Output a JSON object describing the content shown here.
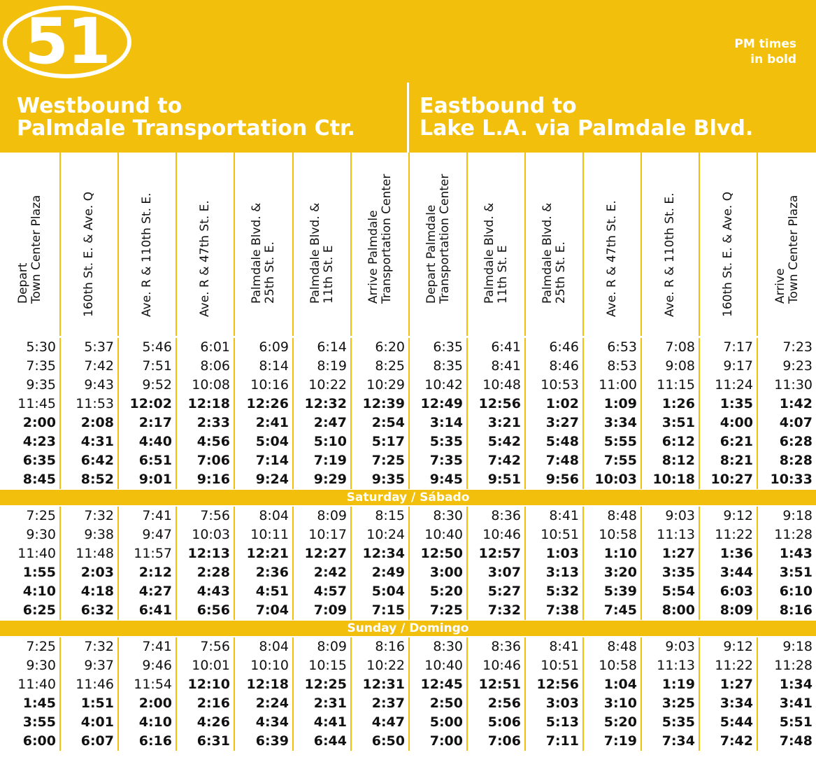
{
  "route": {
    "number": "51"
  },
  "pm_note": [
    "PM times",
    "in bold"
  ],
  "directions": [
    {
      "lines": [
        "Westbound to",
        "Palmdale Transportation Ctr."
      ]
    },
    {
      "lines": [
        "Eastbound to",
        "Lake L.A. via Palmdale Blvd."
      ]
    }
  ],
  "columns": [
    [
      "Depart",
      "Town Center Plaza"
    ],
    [
      "160th St. E. & Ave. Q"
    ],
    [
      "Ave. R & 110th St. E."
    ],
    [
      "Ave. R & 47th St. E."
    ],
    [
      "Palmdale Blvd. &",
      "25th St. E."
    ],
    [
      "Palmdale Blvd. &",
      "11th St. E"
    ],
    [
      "Arrive Palmdale",
      "Transportation Center"
    ],
    [
      "Depart Palmdale",
      "Transportation Center"
    ],
    [
      "Palmdale Blvd. &",
      "11th St. E"
    ],
    [
      "Palmdale Blvd. &",
      "25th St. E."
    ],
    [
      "Ave. R & 47th St. E."
    ],
    [
      "Ave. R & 110th St. E."
    ],
    [
      "160th St. E. & Ave. Q"
    ],
    [
      "Arrive",
      "Town Center Plaza"
    ]
  ],
  "sections": [
    {
      "label": "",
      "rows": [
        [
          [
            "5:30",
            0
          ],
          [
            "5:37",
            0
          ],
          [
            "5:46",
            0
          ],
          [
            "6:01",
            0
          ],
          [
            "6:09",
            0
          ],
          [
            "6:14",
            0
          ],
          [
            "6:20",
            0
          ],
          [
            "6:35",
            0
          ],
          [
            "6:41",
            0
          ],
          [
            "6:46",
            0
          ],
          [
            "6:53",
            0
          ],
          [
            "7:08",
            0
          ],
          [
            "7:17",
            0
          ],
          [
            "7:23",
            0
          ]
        ],
        [
          [
            "7:35",
            0
          ],
          [
            "7:42",
            0
          ],
          [
            "7:51",
            0
          ],
          [
            "8:06",
            0
          ],
          [
            "8:14",
            0
          ],
          [
            "8:19",
            0
          ],
          [
            "8:25",
            0
          ],
          [
            "8:35",
            0
          ],
          [
            "8:41",
            0
          ],
          [
            "8:46",
            0
          ],
          [
            "8:53",
            0
          ],
          [
            "9:08",
            0
          ],
          [
            "9:17",
            0
          ],
          [
            "9:23",
            0
          ]
        ],
        [
          [
            "9:35",
            0
          ],
          [
            "9:43",
            0
          ],
          [
            "9:52",
            0
          ],
          [
            "10:08",
            0
          ],
          [
            "10:16",
            0
          ],
          [
            "10:22",
            0
          ],
          [
            "10:29",
            0
          ],
          [
            "10:42",
            0
          ],
          [
            "10:48",
            0
          ],
          [
            "10:53",
            0
          ],
          [
            "11:00",
            0
          ],
          [
            "11:15",
            0
          ],
          [
            "11:24",
            0
          ],
          [
            "11:30",
            0
          ]
        ],
        [
          [
            "11:45",
            0
          ],
          [
            "11:53",
            0
          ],
          [
            "12:02",
            1
          ],
          [
            "12:18",
            1
          ],
          [
            "12:26",
            1
          ],
          [
            "12:32",
            1
          ],
          [
            "12:39",
            1
          ],
          [
            "12:49",
            1
          ],
          [
            "12:56",
            1
          ],
          [
            "1:02",
            1
          ],
          [
            "1:09",
            1
          ],
          [
            "1:26",
            1
          ],
          [
            "1:35",
            1
          ],
          [
            "1:42",
            1
          ]
        ],
        [
          [
            "2:00",
            1
          ],
          [
            "2:08",
            1
          ],
          [
            "2:17",
            1
          ],
          [
            "2:33",
            1
          ],
          [
            "2:41",
            1
          ],
          [
            "2:47",
            1
          ],
          [
            "2:54",
            1
          ],
          [
            "3:14",
            1
          ],
          [
            "3:21",
            1
          ],
          [
            "3:27",
            1
          ],
          [
            "3:34",
            1
          ],
          [
            "3:51",
            1
          ],
          [
            "4:00",
            1
          ],
          [
            "4:07",
            1
          ]
        ],
        [
          [
            "4:23",
            1
          ],
          [
            "4:31",
            1
          ],
          [
            "4:40",
            1
          ],
          [
            "4:56",
            1
          ],
          [
            "5:04",
            1
          ],
          [
            "5:10",
            1
          ],
          [
            "5:17",
            1
          ],
          [
            "5:35",
            1
          ],
          [
            "5:42",
            1
          ],
          [
            "5:48",
            1
          ],
          [
            "5:55",
            1
          ],
          [
            "6:12",
            1
          ],
          [
            "6:21",
            1
          ],
          [
            "6:28",
            1
          ]
        ],
        [
          [
            "6:35",
            1
          ],
          [
            "6:42",
            1
          ],
          [
            "6:51",
            1
          ],
          [
            "7:06",
            1
          ],
          [
            "7:14",
            1
          ],
          [
            "7:19",
            1
          ],
          [
            "7:25",
            1
          ],
          [
            "7:35",
            1
          ],
          [
            "7:42",
            1
          ],
          [
            "7:48",
            1
          ],
          [
            "7:55",
            1
          ],
          [
            "8:12",
            1
          ],
          [
            "8:21",
            1
          ],
          [
            "8:28",
            1
          ]
        ],
        [
          [
            "8:45",
            1
          ],
          [
            "8:52",
            1
          ],
          [
            "9:01",
            1
          ],
          [
            "9:16",
            1
          ],
          [
            "9:24",
            1
          ],
          [
            "9:29",
            1
          ],
          [
            "9:35",
            1
          ],
          [
            "9:45",
            1
          ],
          [
            "9:51",
            1
          ],
          [
            "9:56",
            1
          ],
          [
            "10:03",
            1
          ],
          [
            "10:18",
            1
          ],
          [
            "10:27",
            1
          ],
          [
            "10:33",
            1
          ]
        ]
      ]
    },
    {
      "label": "Saturday / Sábado",
      "rows": [
        [
          [
            "7:25",
            0
          ],
          [
            "7:32",
            0
          ],
          [
            "7:41",
            0
          ],
          [
            "7:56",
            0
          ],
          [
            "8:04",
            0
          ],
          [
            "8:09",
            0
          ],
          [
            "8:15",
            0
          ],
          [
            "8:30",
            0
          ],
          [
            "8:36",
            0
          ],
          [
            "8:41",
            0
          ],
          [
            "8:48",
            0
          ],
          [
            "9:03",
            0
          ],
          [
            "9:12",
            0
          ],
          [
            "9:18",
            0
          ]
        ],
        [
          [
            "9:30",
            0
          ],
          [
            "9:38",
            0
          ],
          [
            "9:47",
            0
          ],
          [
            "10:03",
            0
          ],
          [
            "10:11",
            0
          ],
          [
            "10:17",
            0
          ],
          [
            "10:24",
            0
          ],
          [
            "10:40",
            0
          ],
          [
            "10:46",
            0
          ],
          [
            "10:51",
            0
          ],
          [
            "10:58",
            0
          ],
          [
            "11:13",
            0
          ],
          [
            "11:22",
            0
          ],
          [
            "11:28",
            0
          ]
        ],
        [
          [
            "11:40",
            0
          ],
          [
            "11:48",
            0
          ],
          [
            "11:57",
            0
          ],
          [
            "12:13",
            1
          ],
          [
            "12:21",
            1
          ],
          [
            "12:27",
            1
          ],
          [
            "12:34",
            1
          ],
          [
            "12:50",
            1
          ],
          [
            "12:57",
            1
          ],
          [
            "1:03",
            1
          ],
          [
            "1:10",
            1
          ],
          [
            "1:27",
            1
          ],
          [
            "1:36",
            1
          ],
          [
            "1:43",
            1
          ]
        ],
        [
          [
            "1:55",
            1
          ],
          [
            "2:03",
            1
          ],
          [
            "2:12",
            1
          ],
          [
            "2:28",
            1
          ],
          [
            "2:36",
            1
          ],
          [
            "2:42",
            1
          ],
          [
            "2:49",
            1
          ],
          [
            "3:00",
            1
          ],
          [
            "3:07",
            1
          ],
          [
            "3:13",
            1
          ],
          [
            "3:20",
            1
          ],
          [
            "3:35",
            1
          ],
          [
            "3:44",
            1
          ],
          [
            "3:51",
            1
          ]
        ],
        [
          [
            "4:10",
            1
          ],
          [
            "4:18",
            1
          ],
          [
            "4:27",
            1
          ],
          [
            "4:43",
            1
          ],
          [
            "4:51",
            1
          ],
          [
            "4:57",
            1
          ],
          [
            "5:04",
            1
          ],
          [
            "5:20",
            1
          ],
          [
            "5:27",
            1
          ],
          [
            "5:32",
            1
          ],
          [
            "5:39",
            1
          ],
          [
            "5:54",
            1
          ],
          [
            "6:03",
            1
          ],
          [
            "6:10",
            1
          ]
        ],
        [
          [
            "6:25",
            1
          ],
          [
            "6:32",
            1
          ],
          [
            "6:41",
            1
          ],
          [
            "6:56",
            1
          ],
          [
            "7:04",
            1
          ],
          [
            "7:09",
            1
          ],
          [
            "7:15",
            1
          ],
          [
            "7:25",
            1
          ],
          [
            "7:32",
            1
          ],
          [
            "7:38",
            1
          ],
          [
            "7:45",
            1
          ],
          [
            "8:00",
            1
          ],
          [
            "8:09",
            1
          ],
          [
            "8:16",
            1
          ]
        ]
      ]
    },
    {
      "label": "Sunday / Domingo",
      "rows": [
        [
          [
            "7:25",
            0
          ],
          [
            "7:32",
            0
          ],
          [
            "7:41",
            0
          ],
          [
            "7:56",
            0
          ],
          [
            "8:04",
            0
          ],
          [
            "8:09",
            0
          ],
          [
            "8:16",
            0
          ],
          [
            "8:30",
            0
          ],
          [
            "8:36",
            0
          ],
          [
            "8:41",
            0
          ],
          [
            "8:48",
            0
          ],
          [
            "9:03",
            0
          ],
          [
            "9:12",
            0
          ],
          [
            "9:18",
            0
          ]
        ],
        [
          [
            "9:30",
            0
          ],
          [
            "9:37",
            0
          ],
          [
            "9:46",
            0
          ],
          [
            "10:01",
            0
          ],
          [
            "10:10",
            0
          ],
          [
            "10:15",
            0
          ],
          [
            "10:22",
            0
          ],
          [
            "10:40",
            0
          ],
          [
            "10:46",
            0
          ],
          [
            "10:51",
            0
          ],
          [
            "10:58",
            0
          ],
          [
            "11:13",
            0
          ],
          [
            "11:22",
            0
          ],
          [
            "11:28",
            0
          ]
        ],
        [
          [
            "11:40",
            0
          ],
          [
            "11:46",
            0
          ],
          [
            "11:54",
            0
          ],
          [
            "12:10",
            1
          ],
          [
            "12:18",
            1
          ],
          [
            "12:25",
            1
          ],
          [
            "12:31",
            1
          ],
          [
            "12:45",
            1
          ],
          [
            "12:51",
            1
          ],
          [
            "12:56",
            1
          ],
          [
            "1:04",
            1
          ],
          [
            "1:19",
            1
          ],
          [
            "1:27",
            1
          ],
          [
            "1:34",
            1
          ]
        ],
        [
          [
            "1:45",
            1
          ],
          [
            "1:51",
            1
          ],
          [
            "2:00",
            1
          ],
          [
            "2:16",
            1
          ],
          [
            "2:24",
            1
          ],
          [
            "2:31",
            1
          ],
          [
            "2:37",
            1
          ],
          [
            "2:50",
            1
          ],
          [
            "2:56",
            1
          ],
          [
            "3:03",
            1
          ],
          [
            "3:10",
            1
          ],
          [
            "3:25",
            1
          ],
          [
            "3:34",
            1
          ],
          [
            "3:41",
            1
          ]
        ],
        [
          [
            "3:55",
            1
          ],
          [
            "4:01",
            1
          ],
          [
            "4:10",
            1
          ],
          [
            "4:26",
            1
          ],
          [
            "4:34",
            1
          ],
          [
            "4:41",
            1
          ],
          [
            "4:47",
            1
          ],
          [
            "5:00",
            1
          ],
          [
            "5:06",
            1
          ],
          [
            "5:13",
            1
          ],
          [
            "5:20",
            1
          ],
          [
            "5:35",
            1
          ],
          [
            "5:44",
            1
          ],
          [
            "5:51",
            1
          ]
        ],
        [
          [
            "6:00",
            1
          ],
          [
            "6:07",
            1
          ],
          [
            "6:16",
            1
          ],
          [
            "6:31",
            1
          ],
          [
            "6:39",
            1
          ],
          [
            "6:44",
            1
          ],
          [
            "6:50",
            1
          ],
          [
            "7:00",
            1
          ],
          [
            "7:06",
            1
          ],
          [
            "7:11",
            1
          ],
          [
            "7:19",
            1
          ],
          [
            "7:34",
            1
          ],
          [
            "7:42",
            1
          ],
          [
            "7:48",
            1
          ]
        ]
      ]
    }
  ]
}
